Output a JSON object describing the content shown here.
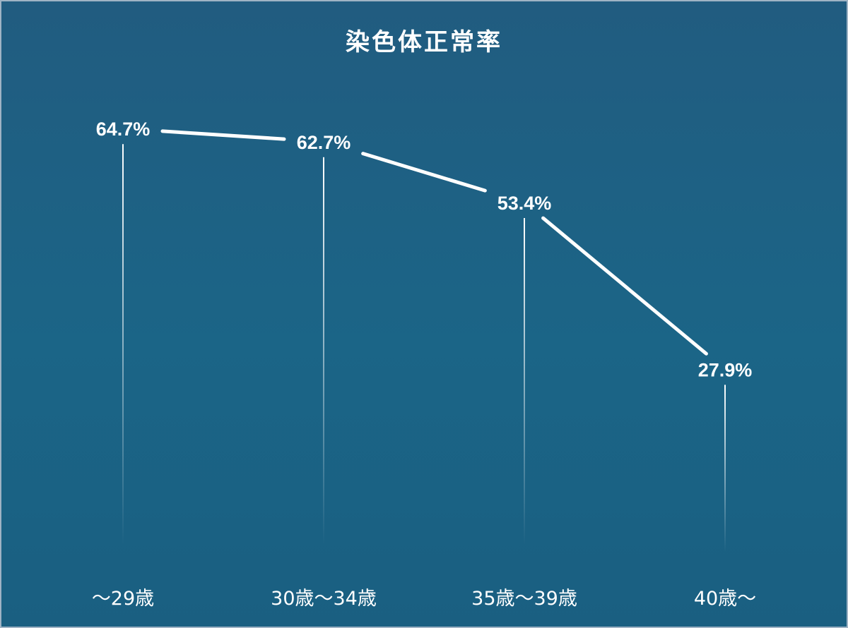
{
  "chart_data": {
    "type": "line",
    "title": "染色体正常率",
    "categories": [
      "〜29歳",
      "30歳〜34歳",
      "35歳〜39歳",
      "40歳〜"
    ],
    "series": [
      {
        "values": [
          64.7,
          62.7,
          53.4,
          27.9
        ],
        "labels": [
          "64.7%",
          "62.7%",
          "53.4%",
          "27.9%"
        ]
      }
    ],
    "xlabel": "",
    "ylabel": "",
    "ylim": [
      0,
      100
    ],
    "grid": false,
    "legend": "none"
  },
  "colors": {
    "background": "#1b6587",
    "line": "#ffffff",
    "text": "#ffffff"
  }
}
